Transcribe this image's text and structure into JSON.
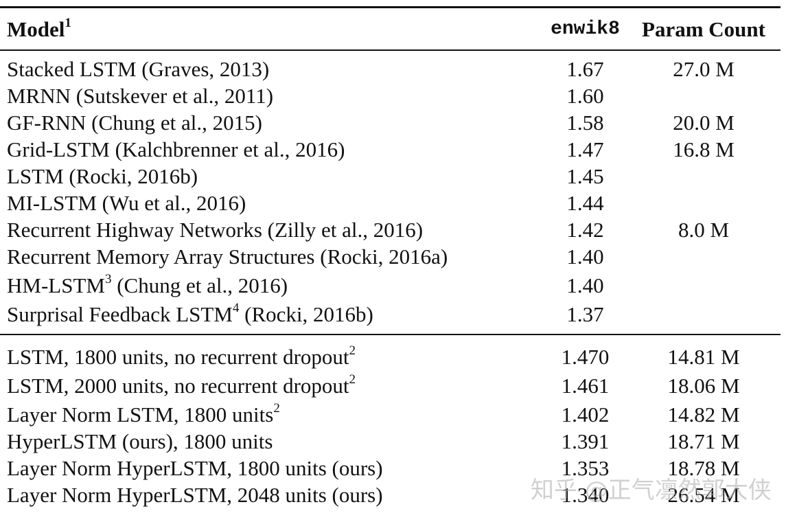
{
  "header": {
    "model": "Model",
    "model_sup": "1",
    "enwik8": "enwik8",
    "params": "Param Count"
  },
  "group1": [
    {
      "model": "Stacked LSTM (Graves, 2013)",
      "sup": "",
      "model_tail": "",
      "enwik8": "1.67",
      "params": "27.0 M"
    },
    {
      "model": "MRNN (Sutskever et al., 2011)",
      "sup": "",
      "model_tail": "",
      "enwik8": "1.60",
      "params": ""
    },
    {
      "model": "GF-RNN (Chung et al., 2015)",
      "sup": "",
      "model_tail": "",
      "enwik8": "1.58",
      "params": "20.0 M"
    },
    {
      "model": "Grid-LSTM (Kalchbrenner et al., 2016)",
      "sup": "",
      "model_tail": "",
      "enwik8": "1.47",
      "params": "16.8 M"
    },
    {
      "model": "LSTM (Rocki, 2016b)",
      "sup": "",
      "model_tail": "",
      "enwik8": "1.45",
      "params": ""
    },
    {
      "model": "MI-LSTM (Wu et al., 2016)",
      "sup": "",
      "model_tail": "",
      "enwik8": "1.44",
      "params": ""
    },
    {
      "model": "Recurrent Highway Networks (Zilly et al., 2016)",
      "sup": "",
      "model_tail": "",
      "enwik8": "1.42",
      "params": "8.0 M"
    },
    {
      "model": "Recurrent Memory Array Structures (Rocki, 2016a)",
      "sup": "",
      "model_tail": "",
      "enwik8": "1.40",
      "params": ""
    },
    {
      "model": "HM-LSTM",
      "sup": "3",
      "model_tail": " (Chung et al., 2016)",
      "enwik8": "1.40",
      "params": ""
    },
    {
      "model": "Surprisal Feedback LSTM",
      "sup": "4",
      "model_tail": " (Rocki, 2016b)",
      "enwik8": "1.37",
      "params": ""
    }
  ],
  "group2": [
    {
      "model": "LSTM, 1800 units, no recurrent dropout",
      "sup": "2",
      "model_tail": "",
      "enwik8": "1.470",
      "params": "14.81 M"
    },
    {
      "model": "LSTM, 2000 units, no recurrent dropout",
      "sup": "2",
      "model_tail": "",
      "enwik8": "1.461",
      "params": "18.06 M"
    },
    {
      "model": "Layer Norm LSTM, 1800 units",
      "sup": "2",
      "model_tail": "",
      "enwik8": "1.402",
      "params": "14.82 M"
    },
    {
      "model": "HyperLSTM (ours), 1800 units",
      "sup": "",
      "model_tail": "",
      "enwik8": "1.391",
      "params": "18.71 M"
    },
    {
      "model": "Layer Norm HyperLSTM, 1800 units (ours)",
      "sup": "",
      "model_tail": "",
      "enwik8": "1.353",
      "params": "18.78 M"
    },
    {
      "model": "Layer Norm HyperLSTM, 2048 units (ours)",
      "sup": "",
      "model_tail": "",
      "enwik8": "1.340",
      "params": "26.54 M"
    }
  ],
  "watermark": "知乎 @正气凛然郭大侠"
}
